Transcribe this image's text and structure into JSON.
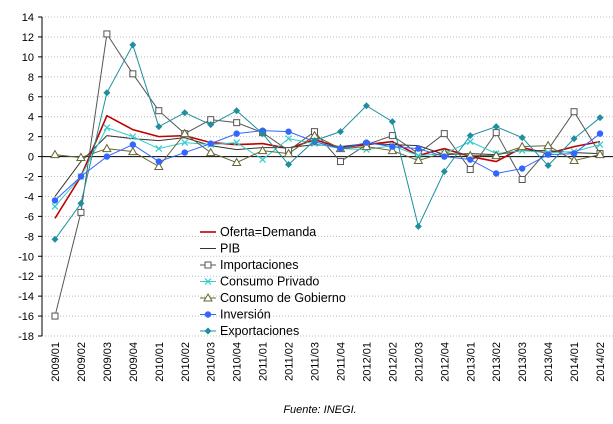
{
  "chart_data": {
    "type": "line",
    "categories": [
      "2009/01",
      "2009/02",
      "2009/03",
      "2009/04",
      "2010/01",
      "2010/02",
      "2010/03",
      "2010/04",
      "2011/01",
      "2011/02",
      "2011/03",
      "2011/04",
      "2012/01",
      "2012/02",
      "2012/03",
      "2012/04",
      "2013/01",
      "2013/02",
      "2013/03",
      "2013/04",
      "2014/01",
      "2014/02"
    ],
    "ylim": [
      -18,
      14
    ],
    "yticks": [
      -18,
      -16,
      -14,
      -12,
      -10,
      -8,
      -6,
      -4,
      -2,
      0,
      2,
      4,
      6,
      8,
      10,
      12,
      14
    ],
    "grid": true,
    "legend": "inside",
    "source": "Fuente: INEGI.",
    "series": [
      {
        "name": "Oferta=Demanda",
        "color": "#c00000",
        "marker": "none",
        "values": [
          -6.2,
          -2.0,
          4.1,
          2.7,
          2.0,
          2.1,
          1.4,
          1.2,
          1.3,
          0.8,
          1.7,
          0.9,
          1.2,
          1.5,
          0.1,
          0.8,
          0.0,
          -0.5,
          0.9,
          0.3,
          1.0,
          1.5
        ]
      },
      {
        "name": "PIB",
        "color": "#333333",
        "marker": "none",
        "values": [
          -4.0,
          -0.5,
          2.1,
          1.8,
          1.6,
          1.9,
          1.1,
          0.7,
          0.9,
          0.9,
          1.2,
          1.0,
          1.3,
          1.2,
          1.1,
          0.2,
          0.3,
          0.2,
          0.6,
          0.6,
          0.4,
          0.3
        ]
      },
      {
        "name": "Importaciones",
        "color": "#555555",
        "marker": "square",
        "values": [
          -16.0,
          -5.6,
          12.3,
          8.3,
          4.6,
          2.3,
          3.7,
          3.4,
          2.4,
          0.6,
          2.5,
          -0.5,
          1.2,
          2.1,
          0.3,
          2.3,
          -1.3,
          2.4,
          -2.3,
          0.7,
          4.5,
          0.3
        ]
      },
      {
        "name": "Consumo Privado",
        "color": "#33cccc",
        "marker": "x",
        "values": [
          -5.0,
          -2.0,
          2.9,
          2.0,
          0.8,
          1.4,
          1.2,
          1.4,
          -0.3,
          1.8,
          1.3,
          0.8,
          0.7,
          1.1,
          0.1,
          0.3,
          1.5,
          0.3,
          0.6,
          0.4,
          0.5,
          1.2
        ]
      },
      {
        "name": "Consumo de Gobierno",
        "color": "#666633",
        "marker": "triangle",
        "values": [
          0.2,
          -0.1,
          0.8,
          0.5,
          -1.0,
          2.3,
          0.4,
          -0.6,
          0.6,
          0.3,
          2.1,
          0.8,
          1.0,
          0.6,
          -0.4,
          0.4,
          0.1,
          0.1,
          1.0,
          1.1,
          -0.4,
          0.2
        ]
      },
      {
        "name": "Inversión",
        "color": "#3366ff",
        "marker": "circle",
        "values": [
          -4.4,
          -2.0,
          0.0,
          1.2,
          -0.5,
          0.4,
          1.3,
          2.3,
          2.6,
          2.5,
          1.5,
          0.8,
          1.4,
          1.0,
          0.8,
          0.0,
          -0.3,
          -1.7,
          -1.2,
          0.2,
          0.3,
          2.3
        ]
      },
      {
        "name": "Exportaciones",
        "color": "#1f8f9f",
        "marker": "diamond",
        "values": [
          -8.3,
          -4.7,
          6.4,
          11.2,
          3.0,
          4.4,
          3.2,
          4.6,
          2.3,
          -0.8,
          1.6,
          2.5,
          5.1,
          3.5,
          -7.0,
          -1.5,
          2.1,
          3.0,
          1.9,
          -0.9,
          1.8,
          3.9
        ]
      }
    ]
  }
}
